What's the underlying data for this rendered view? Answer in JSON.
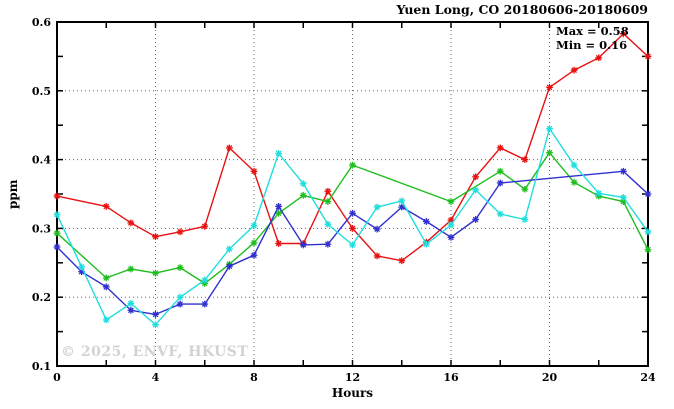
{
  "page": {
    "title": "Yuen Long, CO 20180606-20180609",
    "watermark": "© 2025, ENVF, HKUST"
  },
  "annotations": {
    "max_label": "Max = 0.58",
    "min_label": "Min = 0.16"
  },
  "chart_data": {
    "type": "line",
    "title": "Yuen Long, CO 20180606-20180609",
    "xlabel": "Hours",
    "ylabel": "ppm",
    "xlim": [
      0,
      24
    ],
    "ylim": [
      0.1,
      0.6
    ],
    "xticks": [
      0,
      4,
      8,
      12,
      16,
      20,
      24
    ],
    "xminor_step": 2,
    "yticks": [
      0.1,
      0.2,
      0.3,
      0.4,
      0.5,
      0.6
    ],
    "yminor_step": 0.05,
    "grid": true,
    "annotations": {
      "max": 0.58,
      "min": 0.16
    },
    "x": [
      0,
      1,
      2,
      3,
      4,
      5,
      6,
      7,
      8,
      9,
      10,
      11,
      12,
      13,
      14,
      15,
      16,
      17,
      18,
      19,
      20,
      21,
      22,
      23,
      24
    ],
    "series": [
      {
        "name": "series-red",
        "color": "#e81010",
        "values": [
          0.347,
          null,
          0.332,
          0.308,
          0.288,
          0.295,
          0.303,
          0.417,
          0.383,
          0.278,
          0.278,
          0.354,
          0.3,
          0.26,
          0.253,
          0.28,
          0.312,
          0.375,
          0.417,
          0.4,
          0.505,
          0.53,
          0.548,
          0.583,
          0.55
        ]
      },
      {
        "name": "series-green",
        "color": "#1fbe1f",
        "values": [
          0.293,
          null,
          0.228,
          0.241,
          0.235,
          0.243,
          0.22,
          0.248,
          0.279,
          0.322,
          0.348,
          0.339,
          0.392,
          null,
          null,
          null,
          0.339,
          null,
          0.383,
          0.357,
          0.41,
          0.367,
          0.347,
          0.339,
          0.269
        ]
      },
      {
        "name": "series-blue",
        "color": "#3030d0",
        "values": [
          0.273,
          0.237,
          0.215,
          0.181,
          0.175,
          0.19,
          0.19,
          0.245,
          0.261,
          0.332,
          0.276,
          0.277,
          0.322,
          0.299,
          0.331,
          0.31,
          0.287,
          0.313,
          0.366,
          null,
          null,
          null,
          null,
          0.383,
          0.35
        ]
      },
      {
        "name": "series-cyan",
        "color": "#20dede",
        "values": [
          0.32,
          0.244,
          0.167,
          0.191,
          0.16,
          0.2,
          0.225,
          0.27,
          0.304,
          0.409,
          0.365,
          0.306,
          0.276,
          0.331,
          0.34,
          0.277,
          0.305,
          0.356,
          0.321,
          0.313,
          0.445,
          0.392,
          0.351,
          0.345,
          0.295
        ]
      }
    ]
  }
}
